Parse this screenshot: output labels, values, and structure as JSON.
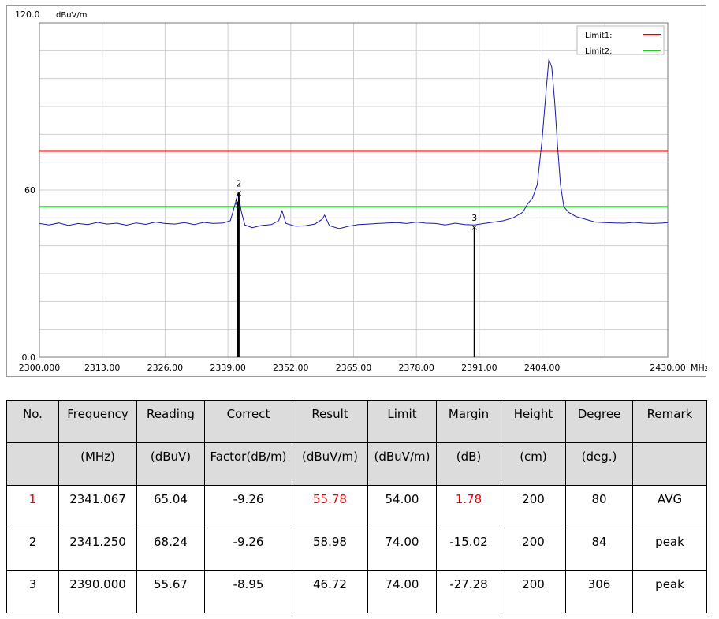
{
  "chart_data": {
    "type": "line",
    "ylim": [
      0,
      120
    ],
    "xlim": [
      2300,
      2430
    ],
    "y_top_label": "120.0",
    "y_unit": "dBuV/m",
    "y_ticks": [
      {
        "value": 60,
        "label": "60"
      },
      {
        "value": 0,
        "label": "0.0"
      }
    ],
    "x_unit": "MHz",
    "x_ticks": [
      {
        "value": 2300,
        "label": "2300.000"
      },
      {
        "value": 2313,
        "label": "2313.00"
      },
      {
        "value": 2326,
        "label": "2326.00"
      },
      {
        "value": 2339,
        "label": "2339.00"
      },
      {
        "value": 2352,
        "label": "2352.00"
      },
      {
        "value": 2365,
        "label": "2365.00"
      },
      {
        "value": 2378,
        "label": "2378.00"
      },
      {
        "value": 2391,
        "label": "2391.00"
      },
      {
        "value": 2404,
        "label": "2404.00"
      },
      {
        "value": 2430,
        "label": "2430.00"
      }
    ],
    "grid": true,
    "legend_position": "top-right",
    "limits": [
      {
        "name": "Limit1:",
        "value": 74,
        "color": "#e00000"
      },
      {
        "name": "Limit2:",
        "value": 54,
        "color": "#22cc22"
      }
    ],
    "series": [
      {
        "color": "#1a1aaa",
        "x": [
          2300,
          2302,
          2304,
          2306,
          2308,
          2310,
          2312,
          2314,
          2316,
          2318,
          2320,
          2322,
          2324,
          2326,
          2328,
          2330,
          2332,
          2334,
          2336,
          2338,
          2339.5,
          2340.5,
          2341.0,
          2341.3,
          2341.8,
          2342.5,
          2344,
          2346,
          2348,
          2349.5,
          2350.2,
          2351,
          2353,
          2355,
          2357,
          2358.5,
          2359.0,
          2360,
          2362,
          2364,
          2366,
          2368,
          2370,
          2372,
          2374,
          2376,
          2378,
          2380,
          2382,
          2384,
          2386,
          2388,
          2390,
          2392,
          2394,
          2396,
          2398,
          2399,
          2400,
          2401,
          2402,
          2403,
          2404,
          2404.8,
          2405.4,
          2406,
          2406.6,
          2407.2,
          2407.8,
          2408.5,
          2409.5,
          2411,
          2413,
          2415,
          2417,
          2419,
          2421,
          2423,
          2425,
          2427,
          2429,
          2430
        ],
        "values": [
          48,
          47.5,
          48.2,
          47.3,
          48,
          47.6,
          48.4,
          47.8,
          48.1,
          47.4,
          48.2,
          47.7,
          48.5,
          48,
          47.8,
          48.3,
          47.6,
          48.4,
          48,
          48.2,
          49,
          55,
          58.5,
          57,
          52,
          47.5,
          46.5,
          47.3,
          47.6,
          49,
          52.5,
          48,
          47,
          47.2,
          47.8,
          49.5,
          51,
          47.2,
          46.2,
          47,
          47.6,
          47.8,
          48,
          48.2,
          48.3,
          48,
          48.5,
          48.1,
          48,
          47.5,
          48.1,
          47.6,
          47.5,
          48,
          48.5,
          49,
          50,
          51,
          52,
          55,
          57,
          62,
          78,
          95,
          107,
          104,
          92,
          76,
          62,
          54,
          52,
          50.5,
          49.5,
          48.5,
          48.3,
          48.2,
          48.1,
          48.4,
          48.1,
          48,
          48.2,
          48.3
        ]
      }
    ],
    "markers": [
      {
        "label": "1",
        "x": 2341.067,
        "y": 55.78
      },
      {
        "label": "2",
        "x": 2341.25,
        "y": 58.98
      },
      {
        "label": "3",
        "x": 2390.0,
        "y": 46.72
      }
    ]
  },
  "table": {
    "header1": [
      "No.",
      "Frequency",
      "Reading",
      "Correct",
      "Result",
      "Limit",
      "Margin",
      "Height",
      "Degree",
      "Remark"
    ],
    "header2": [
      "",
      "(MHz)",
      "(dBuV)",
      "Factor(dB/m)",
      "(dBuV/m)",
      "(dBuV/m)",
      "(dB)",
      "(cm)",
      "(deg.)",
      ""
    ],
    "rows": [
      [
        "1",
        "2341.067",
        "65.04",
        "-9.26",
        "55.78",
        "54.00",
        "1.78",
        "200",
        "80",
        "AVG"
      ],
      [
        "2",
        "2341.250",
        "68.24",
        "-9.26",
        "58.98",
        "74.00",
        "-15.02",
        "200",
        "84",
        "peak"
      ],
      [
        "3",
        "2390.000",
        "55.67",
        "-8.95",
        "46.72",
        "74.00",
        "-27.28",
        "200",
        "306",
        "peak"
      ]
    ],
    "highlight_color": "#e00000"
  }
}
